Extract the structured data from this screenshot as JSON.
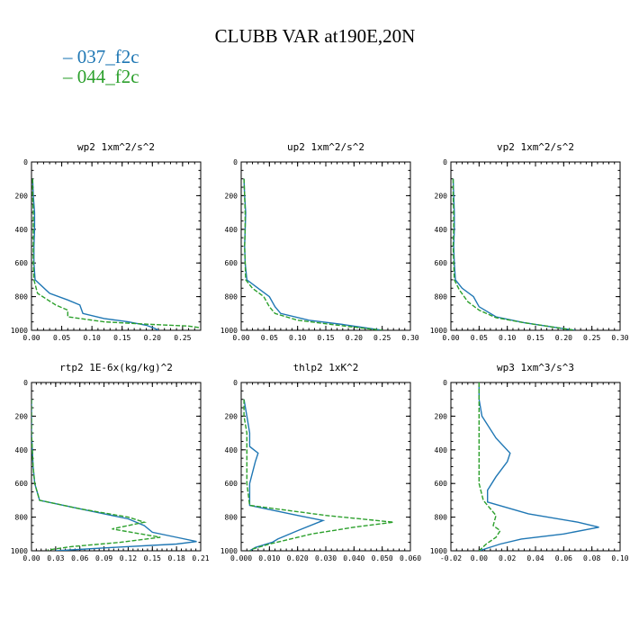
{
  "title": "CLUBB VAR at190E,20N",
  "legend": [
    {
      "label": "– 037_f2c",
      "color": "#1f77b4"
    },
    {
      "label": "– 044_f2c",
      "color": "#2ca02c"
    }
  ],
  "chart_data": [
    {
      "type": "line",
      "title": "wp2  1xm^2/s^2",
      "xlim": [
        0,
        0.28
      ],
      "xticks": [
        "0.00",
        "0.05",
        "0.10",
        "0.15",
        "0.20",
        "0.25"
      ],
      "xtick_values": [
        0,
        0.05,
        0.1,
        0.15,
        0.2,
        0.25
      ],
      "ylim": [
        0,
        1000
      ],
      "yticks": [
        "0",
        "200",
        "400",
        "600",
        "800",
        "1000"
      ],
      "y_inverted": true,
      "series": [
        {
          "name": "037_f2c",
          "x": [
            0.002,
            0.003,
            0.005,
            0.005,
            0.004,
            0.004,
            0.006,
            0.03,
            0.06,
            0.08,
            0.085,
            0.12,
            0.16,
            0.19,
            0.205,
            0.21
          ],
          "y": [
            100,
            200,
            300,
            400,
            500,
            600,
            700,
            780,
            820,
            850,
            900,
            930,
            950,
            970,
            990,
            1000
          ]
        },
        {
          "name": "044_f2c",
          "x": [
            0.002,
            0.002,
            0.003,
            0.003,
            0.003,
            0.003,
            0.004,
            0.01,
            0.04,
            0.06,
            0.06,
            0.12,
            0.2,
            0.26,
            0.28
          ],
          "y": [
            100,
            200,
            300,
            400,
            500,
            600,
            700,
            780,
            850,
            880,
            920,
            950,
            965,
            975,
            985
          ]
        }
      ]
    },
    {
      "type": "line",
      "title": "up2  1xm^2/s^2",
      "xlim": [
        0,
        0.3
      ],
      "xticks": [
        "0.00",
        "0.05",
        "0.10",
        "0.15",
        "0.20",
        "0.25",
        "0.30"
      ],
      "xtick_values": [
        0,
        0.05,
        0.1,
        0.15,
        0.2,
        0.25,
        0.3
      ],
      "ylim": [
        0,
        1000
      ],
      "yticks": [
        "0",
        "200",
        "400",
        "600",
        "800",
        "1000"
      ],
      "y_inverted": true,
      "series": [
        {
          "name": "037_f2c",
          "x": [
            0.005,
            0.006,
            0.008,
            0.007,
            0.006,
            0.007,
            0.01,
            0.03,
            0.05,
            0.06,
            0.07,
            0.12,
            0.18,
            0.22,
            0.25
          ],
          "y": [
            100,
            200,
            300,
            400,
            500,
            600,
            700,
            750,
            800,
            860,
            900,
            940,
            965,
            985,
            1000
          ]
        },
        {
          "name": "044_f2c",
          "x": [
            0.005,
            0.006,
            0.007,
            0.007,
            0.006,
            0.007,
            0.008,
            0.02,
            0.04,
            0.05,
            0.06,
            0.1,
            0.16,
            0.21,
            0.25
          ],
          "y": [
            100,
            200,
            300,
            400,
            500,
            600,
            700,
            750,
            800,
            860,
            900,
            940,
            965,
            985,
            1000
          ]
        }
      ]
    },
    {
      "type": "line",
      "title": "vp2  1xm^2/s^2",
      "xlim": [
        0,
        0.3
      ],
      "xticks": [
        "0.00",
        "0.05",
        "0.10",
        "0.15",
        "0.20",
        "0.25",
        "0.30"
      ],
      "xtick_values": [
        0,
        0.05,
        0.1,
        0.15,
        0.2,
        0.25,
        0.3
      ],
      "ylim": [
        0,
        1000
      ],
      "yticks": [
        "0",
        "200",
        "400",
        "600",
        "800",
        "1000"
      ],
      "y_inverted": true,
      "series": [
        {
          "name": "037_f2c",
          "x": [
            0.004,
            0.005,
            0.006,
            0.006,
            0.005,
            0.006,
            0.008,
            0.02,
            0.04,
            0.05,
            0.08,
            0.13,
            0.18,
            0.22
          ],
          "y": [
            100,
            200,
            300,
            400,
            500,
            600,
            700,
            750,
            800,
            860,
            920,
            955,
            980,
            1000
          ]
        },
        {
          "name": "044_f2c",
          "x": [
            0.004,
            0.004,
            0.005,
            0.005,
            0.004,
            0.005,
            0.006,
            0.015,
            0.03,
            0.05,
            0.08,
            0.13,
            0.18,
            0.22
          ],
          "y": [
            100,
            200,
            300,
            400,
            500,
            600,
            700,
            760,
            830,
            880,
            925,
            955,
            980,
            1000
          ]
        }
      ]
    },
    {
      "type": "line",
      "title": "rtp2  1E-6x(kg/kg)^2",
      "xlim": [
        0,
        0.21
      ],
      "xticks": [
        "0.00",
        "0.03",
        "0.06",
        "0.09",
        "0.12",
        "0.15",
        "0.18",
        "0.21"
      ],
      "xtick_values": [
        0,
        0.03,
        0.06,
        0.09,
        0.12,
        0.15,
        0.18,
        0.21
      ],
      "ylim": [
        0,
        1000
      ],
      "yticks": [
        "0",
        "200",
        "400",
        "600",
        "800",
        "1000"
      ],
      "y_inverted": true,
      "series": [
        {
          "name": "037_f2c",
          "x": [
            0.0,
            0.0,
            0.0,
            0.001,
            0.002,
            0.004,
            0.01,
            0.06,
            0.12,
            0.14,
            0.15,
            0.18,
            0.205,
            0.18,
            0.1,
            0.03
          ],
          "y": [
            100,
            200,
            300,
            400,
            500,
            600,
            700,
            750,
            810,
            850,
            890,
            920,
            945,
            960,
            980,
            1000
          ]
        },
        {
          "name": "044_f2c",
          "x": [
            0.0,
            0.0,
            0.0,
            0.001,
            0.002,
            0.004,
            0.01,
            0.06,
            0.12,
            0.14,
            0.1,
            0.16,
            0.11,
            0.05,
            0.02
          ],
          "y": [
            100,
            200,
            300,
            400,
            500,
            600,
            700,
            750,
            800,
            830,
            870,
            920,
            950,
            975,
            995
          ]
        }
      ]
    },
    {
      "type": "line",
      "title": "thlp2  1xK^2",
      "xlim": [
        0,
        0.06
      ],
      "xticks": [
        "0.000",
        "0.010",
        "0.020",
        "0.030",
        "0.040",
        "0.050",
        "0.060"
      ],
      "xtick_values": [
        0,
        0.01,
        0.02,
        0.03,
        0.04,
        0.05,
        0.06
      ],
      "ylim": [
        0,
        1000
      ],
      "yticks": [
        "0",
        "200",
        "400",
        "600",
        "800",
        "1000"
      ],
      "y_inverted": true,
      "series": [
        {
          "name": "037_f2c",
          "x": [
            0.001,
            0.002,
            0.003,
            0.003,
            0.006,
            0.005,
            0.003,
            0.003,
            0.02,
            0.029,
            0.02,
            0.013,
            0.011,
            0.005,
            0.003
          ],
          "y": [
            100,
            200,
            300,
            380,
            420,
            470,
            600,
            730,
            790,
            820,
            880,
            930,
            950,
            980,
            1000
          ]
        },
        {
          "name": "044_f2c",
          "x": [
            0.001,
            0.001,
            0.002,
            0.002,
            0.002,
            0.002,
            0.003,
            0.03,
            0.054,
            0.04,
            0.025,
            0.01,
            0.004,
            0.003
          ],
          "y": [
            100,
            200,
            300,
            400,
            500,
            600,
            730,
            790,
            830,
            860,
            900,
            960,
            990,
            1000
          ]
        }
      ]
    },
    {
      "type": "line",
      "title": "wp3  1xm^3/s^3",
      "xlim": [
        -0.02,
        0.1
      ],
      "xticks": [
        "-0.02",
        "0.00",
        "0.02",
        "0.04",
        "0.06",
        "0.08",
        "0.10"
      ],
      "xtick_values": [
        -0.02,
        0.0,
        0.02,
        0.04,
        0.06,
        0.08,
        0.1
      ],
      "ylim": [
        0,
        1000
      ],
      "yticks": [
        "0",
        "200",
        "400",
        "600",
        "800",
        "1000"
      ],
      "y_inverted": true,
      "series": [
        {
          "name": "037_f2c",
          "x": [
            0.0,
            0.0,
            0.002,
            0.012,
            0.022,
            0.02,
            0.012,
            0.006,
            0.006,
            0.035,
            0.07,
            0.085,
            0.06,
            0.03,
            0.015,
            0.0
          ],
          "y": [
            0,
            100,
            200,
            330,
            420,
            470,
            560,
            640,
            710,
            780,
            830,
            860,
            900,
            930,
            960,
            1000
          ]
        },
        {
          "name": "044_f2c",
          "x": [
            0.0,
            0.0,
            0.0,
            0.0,
            0.0,
            0.0,
            0.003,
            0.012,
            0.01,
            0.015,
            0.012,
            0.005,
            0.0
          ],
          "y": [
            0,
            200,
            300,
            400,
            500,
            600,
            700,
            790,
            850,
            880,
            920,
            960,
            1000
          ]
        }
      ]
    }
  ]
}
